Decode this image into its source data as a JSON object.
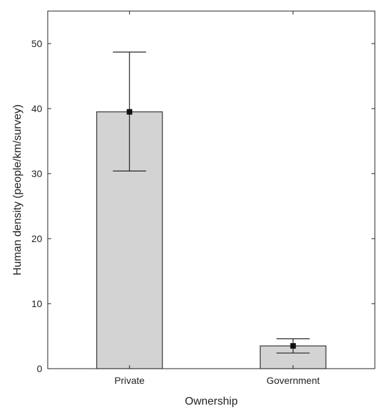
{
  "chart_data": {
    "type": "bar",
    "categories": [
      "Private",
      "Government"
    ],
    "values": [
      39.5,
      3.5
    ],
    "error_low": [
      30.4,
      2.4
    ],
    "error_high": [
      48.7,
      4.6
    ],
    "title": "",
    "xlabel": "Ownership",
    "ylabel": "Human density (people/km/survey)",
    "ylim": [
      0,
      55
    ],
    "yticks": [
      0,
      10,
      20,
      30,
      40,
      50
    ],
    "grid": false,
    "legend": "none",
    "colors": {
      "bar_fill": "#d3d3d3",
      "bar_stroke": "#333333",
      "axis": "#222222",
      "marker": "#111111"
    }
  }
}
